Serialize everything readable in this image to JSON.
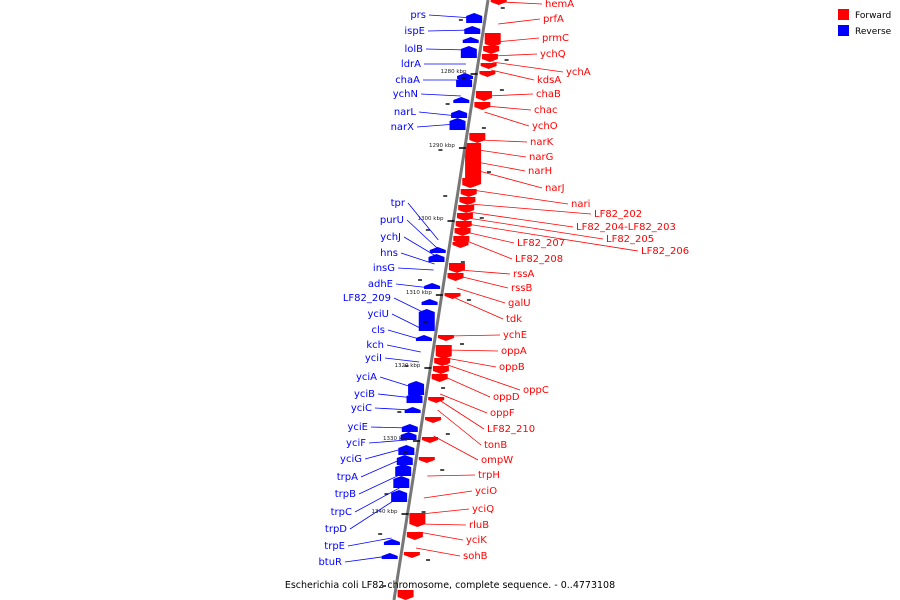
{
  "caption": "Escherichia coli LF82 chromosome, complete sequence. - 0..4773108",
  "legend": [
    {
      "label": "Forward",
      "color": "#ff0000"
    },
    {
      "label": "Reverse",
      "color": "#0000ff"
    }
  ],
  "colors": {
    "forward": "#ff0000",
    "reverse": "#0000ff",
    "backbone": "#666666"
  },
  "kbp_ticks": [
    "1280 kbp",
    "1290 kbp",
    "1300 kbp",
    "1310 kbp",
    "1320 kbp",
    "1330 kbp",
    "1340 kbp"
  ],
  "reverse_genes": [
    "prs",
    "ispE",
    "lolB",
    "ldrA",
    "chaA",
    "ychN",
    "narL",
    "narX",
    "tpr",
    "purU",
    "ychJ",
    "hns",
    "insG",
    "adhE",
    "LF82_209",
    "yciU",
    "cls",
    "kch",
    "yciI",
    "yciA",
    "yciB",
    "yciC",
    "yciE",
    "yciF",
    "yciG",
    "trpA",
    "trpB",
    "trpC",
    "trpD",
    "trpE",
    "btuR"
  ],
  "forward_genes": [
    "hemA",
    "prfA",
    "prmC",
    "ychQ",
    "ychA",
    "kdsA",
    "chaB",
    "chac",
    "ychO",
    "narK",
    "narG",
    "narH",
    "narJ",
    "nari",
    "LF82_202",
    "LF82_204-LF82_203",
    "LF82_205",
    "LF82_206",
    "LF82_207",
    "LF82_208",
    "rssA",
    "rssB",
    "galU",
    "tdk",
    "ychE",
    "oppA",
    "oppB",
    "oppC",
    "oppD",
    "oppF",
    "LF82_210",
    "tonB",
    "ompW",
    "trpH",
    "yciO",
    "yciQ",
    "rluB",
    "yciK",
    "sohB"
  ]
}
